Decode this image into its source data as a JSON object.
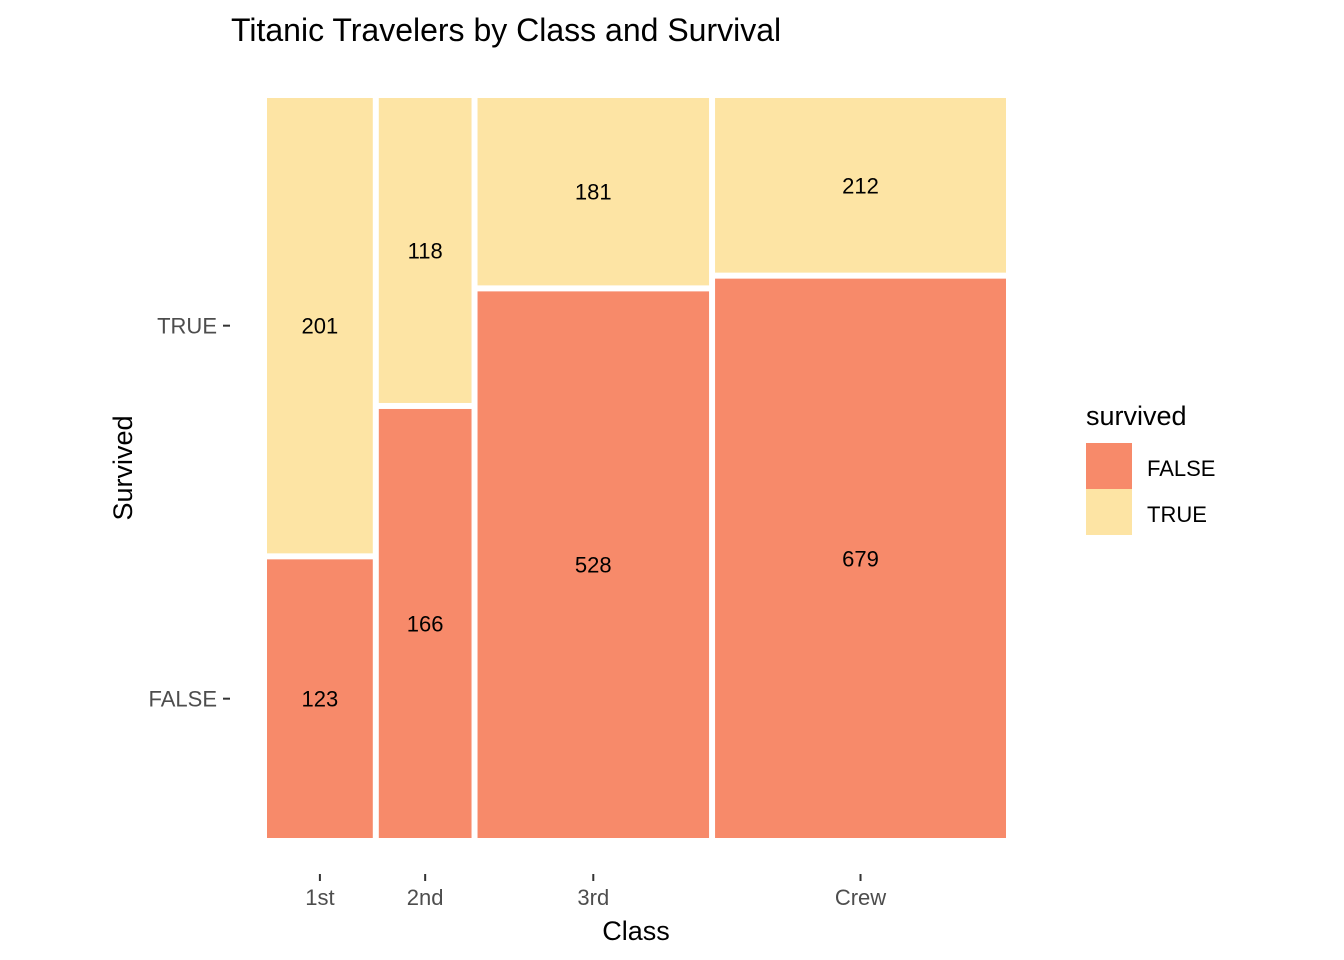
{
  "chart_data": {
    "type": "mosaic",
    "title": "Titanic Travelers by Class and Survival",
    "xlabel": "Class",
    "ylabel": "Survived",
    "categories": [
      "1st",
      "2nd",
      "3rd",
      "Crew"
    ],
    "y_ticks": [
      "TRUE",
      "FALSE"
    ],
    "series": [
      {
        "name": "FALSE",
        "values": [
          123,
          166,
          528,
          679
        ],
        "color": "#f78a6a"
      },
      {
        "name": "TRUE",
        "values": [
          201,
          118,
          181,
          212
        ],
        "color": "#fde4a4"
      }
    ],
    "legend": {
      "title": "survived",
      "position": "right",
      "items": [
        {
          "label": "FALSE",
          "color": "#f78a6a"
        },
        {
          "label": "TRUE",
          "color": "#fde4a4"
        }
      ]
    },
    "grid": false
  }
}
